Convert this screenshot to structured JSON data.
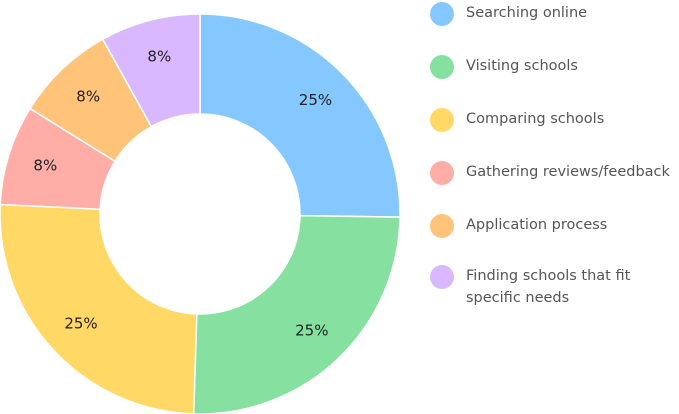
{
  "chart_data": {
    "type": "donut",
    "categories": [
      "Searching online",
      "Visiting schools",
      "Comparing schools",
      "Gathering reviews/feedback",
      "Application process",
      "Finding schools that fit specific needs"
    ],
    "values": [
      25,
      25,
      25,
      8,
      8,
      8
    ],
    "value_labels": [
      "25%",
      "25%",
      "25%",
      "8%",
      "8%",
      "8%"
    ],
    "colors": [
      "#85c8ff",
      "#86e0a0",
      "#ffd866",
      "#ffada6",
      "#ffc47a",
      "#d9b8ff"
    ],
    "legend": "right"
  }
}
